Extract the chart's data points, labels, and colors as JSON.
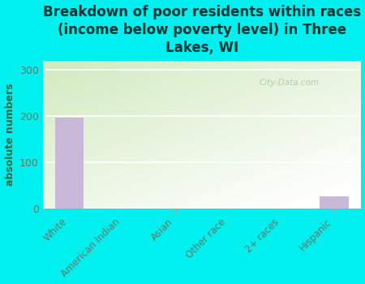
{
  "title": "Breakdown of poor residents within races\n(income below poverty level) in Three\nLakes, WI",
  "ylabel": "absolute numbers",
  "categories": [
    "White",
    "American Indian",
    "Asian",
    "Other race",
    "2+ races",
    "Hispanic"
  ],
  "values": [
    196,
    0,
    0,
    0,
    0,
    25
  ],
  "bar_color": "#c9b8d8",
  "ylim": [
    0,
    320
  ],
  "yticks": [
    0,
    100,
    200,
    300
  ],
  "background_color": "#00efef",
  "plot_bg_colors": [
    "#d4e8c0",
    "#e8f2da",
    "#f0f7e8",
    "#f8fcf4",
    "#ffffff"
  ],
  "title_fontsize": 12,
  "title_color": "#003333",
  "ylabel_fontsize": 9,
  "ylabel_color": "#336644",
  "tick_color": "#667766",
  "watermark": "City-Data.com"
}
